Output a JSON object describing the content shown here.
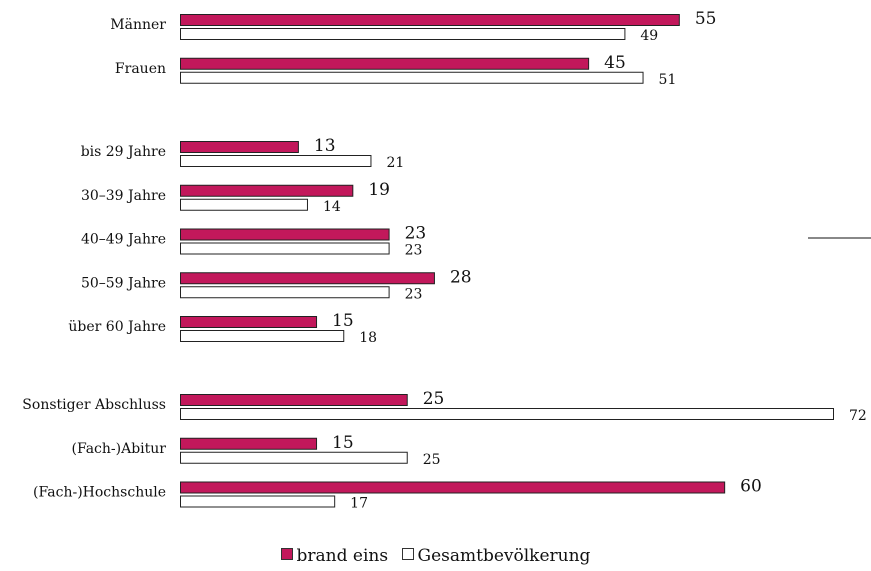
{
  "colors": {
    "brand": "#c2185b",
    "gesamt": "#ffffff",
    "stroke": "#222222"
  },
  "chart_data": {
    "type": "bar",
    "orientation": "horizontal",
    "xlim": [
      0,
      72
    ],
    "grid": false,
    "legend_position": "bottom",
    "groups": [
      {
        "categories": [
          "Männer",
          "Frauen"
        ]
      },
      {
        "categories": [
          "bis 29 Jahre",
          "30–39 Jahre",
          "40–49 Jahre",
          "50–59 Jahre",
          "über 60 Jahre"
        ]
      },
      {
        "categories": [
          "Sonstiger Abschluss",
          "(Fach-)Abitur",
          "(Fach-)Hochschule"
        ]
      }
    ],
    "categories": [
      "Männer",
      "Frauen",
      "bis 29 Jahre",
      "30–39 Jahre",
      "40–49 Jahre",
      "50–59 Jahre",
      "über 60 Jahre",
      "Sonstiger Abschluss",
      "(Fach-)Abitur",
      "(Fach-)Hochschule"
    ],
    "series": [
      {
        "name": "brand eins",
        "values": [
          55,
          45,
          13,
          19,
          23,
          28,
          15,
          25,
          15,
          60
        ]
      },
      {
        "name": "Gesamtbevölkerung",
        "values": [
          49,
          51,
          21,
          14,
          23,
          23,
          18,
          72,
          25,
          17
        ]
      }
    ]
  }
}
